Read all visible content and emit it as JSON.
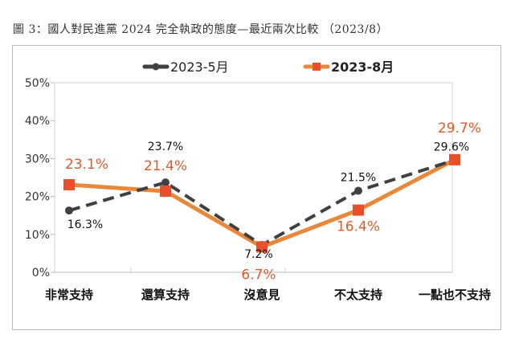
{
  "title": "圖 3：國人對民進黨 2024 完全執政的態度—最近兩次比較 （2023/8）",
  "chart_data": {
    "type": "line",
    "categories": [
      "非常支持",
      "還算支持",
      "沒意見",
      "不太支持",
      "一點也不支持"
    ],
    "series": [
      {
        "name": "2023-5月",
        "values": [
          16.3,
          23.7,
          7.2,
          21.5,
          29.6
        ],
        "labels": [
          "16.3%",
          "23.7%",
          "7.2%",
          "21.5%",
          "29.6%"
        ],
        "color": "#404040",
        "style": "dashed",
        "marker": "circle"
      },
      {
        "name": "2023-8月",
        "values": [
          23.1,
          21.4,
          6.7,
          16.4,
          29.7
        ],
        "labels": [
          "23.1%",
          "21.4%",
          "6.7%",
          "16.4%",
          "29.7%"
        ],
        "color": "#e8883a",
        "marker_color": "#e8502a",
        "label_color": "#e05a2a",
        "style": "solid",
        "marker": "square"
      }
    ],
    "yticks": [
      "0%",
      "10%",
      "20%",
      "30%",
      "40%",
      "50%"
    ],
    "ylim": [
      0,
      50
    ],
    "legend": "top"
  }
}
